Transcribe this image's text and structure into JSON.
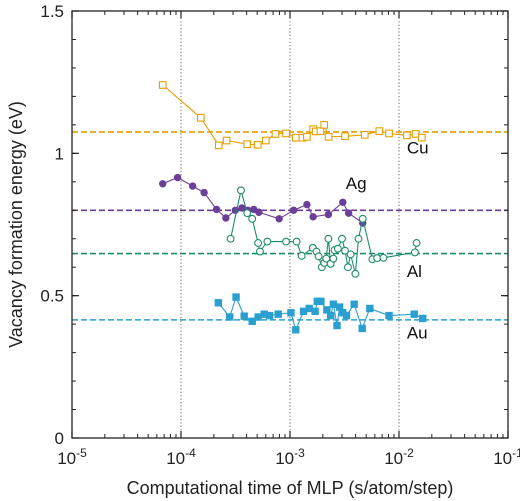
{
  "chart_data": {
    "type": "scatter",
    "xlabel": "Computational time of MLP (s/atom/step)",
    "ylabel": "Vacancy formation energy (eV)",
    "xscale": "log",
    "xlim": [
      1e-05,
      0.1
    ],
    "ylim": [
      0,
      1.5
    ],
    "x_ticks": [
      {
        "value": 1e-05,
        "base": "10",
        "exp": "-5"
      },
      {
        "value": 0.0001,
        "base": "10",
        "exp": "-4"
      },
      {
        "value": 0.001,
        "base": "10",
        "exp": "-3"
      },
      {
        "value": 0.01,
        "base": "10",
        "exp": "-2"
      },
      {
        "value": 0.1,
        "base": "10",
        "exp": "-1"
      }
    ],
    "y_ticks": [
      {
        "value": 0,
        "label": "0"
      },
      {
        "value": 0.5,
        "label": "0.5"
      },
      {
        "value": 1,
        "label": "1"
      },
      {
        "value": 1.5,
        "label": "1.5"
      }
    ],
    "grid": "vertical dotted at decades",
    "series": [
      {
        "name": "Cu",
        "color": "#E69F00",
        "marker": "open-square",
        "reference": 1.075,
        "label_at": [
          0.0118,
          1.0
        ],
        "points": [
          [
            6.8e-05,
            1.24
          ],
          [
            0.000152,
            1.125
          ],
          [
            0.000222,
            1.028
          ],
          [
            0.000262,
            1.045
          ],
          [
            0.000405,
            1.032
          ],
          [
            0.000505,
            1.03
          ],
          [
            0.0006,
            1.045
          ],
          [
            0.000735,
            1.068
          ],
          [
            0.00092,
            1.07
          ],
          [
            0.00113,
            1.055
          ],
          [
            0.0013,
            1.055
          ],
          [
            0.00143,
            1.058
          ],
          [
            0.00163,
            1.085
          ],
          [
            0.00172,
            1.077
          ],
          [
            0.0019,
            1.078
          ],
          [
            0.00206,
            1.1
          ],
          [
            0.00226,
            1.058
          ],
          [
            0.0032,
            1.06
          ],
          [
            0.00485,
            1.065
          ],
          [
            0.0066,
            1.078
          ],
          [
            0.0081,
            1.07
          ],
          [
            0.0118,
            1.063
          ],
          [
            0.0142,
            1.068
          ],
          [
            0.0162,
            1.055
          ]
        ]
      },
      {
        "name": "Ag",
        "color": "#6B3E98",
        "marker": "filled-circle",
        "reference": 0.8,
        "label_at": [
          0.00325,
          0.875
        ],
        "points": [
          [
            6.8e-05,
            0.893
          ],
          [
            9.3e-05,
            0.915
          ],
          [
            0.000128,
            0.885
          ],
          [
            0.000163,
            0.862
          ],
          [
            0.000212,
            0.803
          ],
          [
            0.000258,
            0.773
          ],
          [
            0.000315,
            0.8
          ],
          [
            0.000362,
            0.808
          ],
          [
            0.00041,
            0.8
          ],
          [
            0.000465,
            0.803
          ],
          [
            0.000518,
            0.793
          ],
          [
            0.000795,
            0.77
          ],
          [
            0.00108,
            0.8
          ],
          [
            0.00143,
            0.82
          ],
          [
            0.00163,
            0.777
          ],
          [
            0.00225,
            0.785
          ],
          [
            0.00305,
            0.828
          ],
          [
            0.00345,
            0.79
          ],
          [
            0.00465,
            0.755
          ]
        ]
      },
      {
        "name": "Al",
        "color": "#1E8C6E",
        "marker": "open-circle",
        "reference": 0.648,
        "label_at": [
          0.0118,
          0.565
        ],
        "points": [
          [
            0.000285,
            0.7
          ],
          [
            0.000355,
            0.87
          ],
          [
            0.000405,
            0.79
          ],
          [
            0.00045,
            0.77
          ],
          [
            0.00051,
            0.685
          ],
          [
            0.00053,
            0.655
          ],
          [
            0.00062,
            0.69
          ],
          [
            0.00092,
            0.69
          ],
          [
            0.00115,
            0.69
          ],
          [
            0.00128,
            0.64
          ],
          [
            0.00162,
            0.668
          ],
          [
            0.00175,
            0.655
          ],
          [
            0.00183,
            0.638
          ],
          [
            0.00196,
            0.6
          ],
          [
            0.00206,
            0.615
          ],
          [
            0.00215,
            0.63
          ],
          [
            0.00225,
            0.7
          ],
          [
            0.00236,
            0.612
          ],
          [
            0.0025,
            0.63
          ],
          [
            0.00256,
            0.66
          ],
          [
            0.00275,
            0.665
          ],
          [
            0.003,
            0.7
          ],
          [
            0.0032,
            0.658
          ],
          [
            0.0034,
            0.6
          ],
          [
            0.0036,
            0.645
          ],
          [
            0.00398,
            0.577
          ],
          [
            0.00425,
            0.7
          ],
          [
            0.00465,
            0.77
          ],
          [
            0.0057,
            0.628
          ],
          [
            0.0063,
            0.632
          ],
          [
            0.0072,
            0.633
          ],
          [
            0.014,
            0.652
          ],
          [
            0.0145,
            0.685
          ]
        ]
      },
      {
        "name": "Au",
        "color": "#2AA0D0",
        "marker": "filled-square",
        "reference": 0.415,
        "label_at": [
          0.0118,
          0.35
        ],
        "points": [
          [
            0.00022,
            0.475
          ],
          [
            0.00028,
            0.425
          ],
          [
            0.00032,
            0.495
          ],
          [
            0.00038,
            0.428
          ],
          [
            0.00045,
            0.41
          ],
          [
            0.00051,
            0.425
          ],
          [
            0.00058,
            0.435
          ],
          [
            0.00065,
            0.43
          ],
          [
            0.00078,
            0.435
          ],
          [
            0.00102,
            0.44
          ],
          [
            0.00113,
            0.38
          ],
          [
            0.00133,
            0.445
          ],
          [
            0.0015,
            0.455
          ],
          [
            0.0017,
            0.445
          ],
          [
            0.00178,
            0.48
          ],
          [
            0.00192,
            0.48
          ],
          [
            0.00218,
            0.45
          ],
          [
            0.00236,
            0.43
          ],
          [
            0.0025,
            0.47
          ],
          [
            0.0027,
            0.395
          ],
          [
            0.00285,
            0.46
          ],
          [
            0.00305,
            0.44
          ],
          [
            0.0033,
            0.43
          ],
          [
            0.00388,
            0.47
          ],
          [
            0.0046,
            0.385
          ],
          [
            0.0054,
            0.455
          ],
          [
            0.0081,
            0.43
          ],
          [
            0.0138,
            0.435
          ],
          [
            0.0165,
            0.42
          ]
        ]
      }
    ]
  }
}
